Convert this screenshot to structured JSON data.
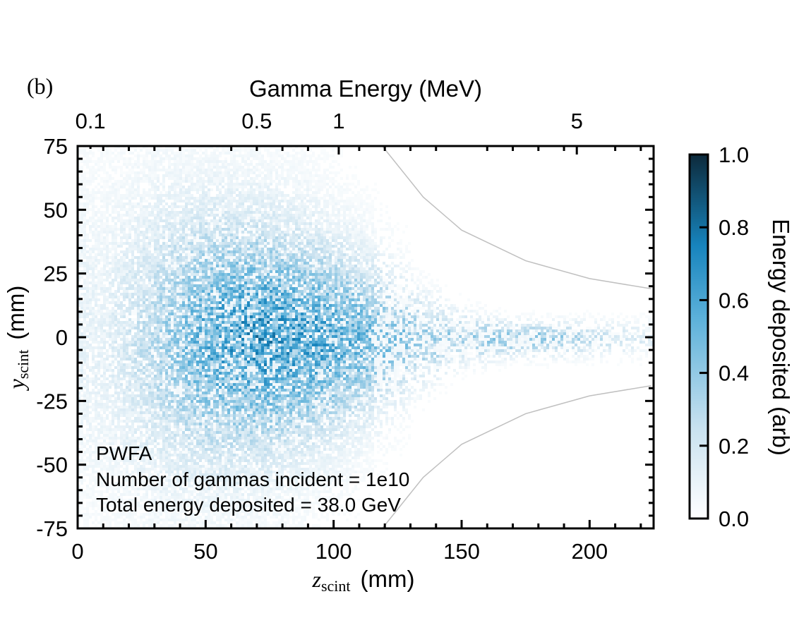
{
  "panel_label": "(b)",
  "chart_data": {
    "type": "heatmap",
    "top_axis": {
      "label": "Gamma Energy (MeV)",
      "ticks": [
        {
          "label": "0.1",
          "z": 5
        },
        {
          "label": "0.5",
          "z": 70
        },
        {
          "label": "1",
          "z": 102
        },
        {
          "label": "5",
          "z": 195
        }
      ]
    },
    "x_axis": {
      "label_symbol": "z",
      "label_subscript": "scint",
      "label_units": "(mm)",
      "range": [
        0,
        225
      ],
      "ticks": [
        0,
        50,
        100,
        150,
        200
      ],
      "tick_labels": [
        "0",
        "50",
        "100",
        "150",
        "200"
      ]
    },
    "y_axis": {
      "label_symbol": "y",
      "label_subscript": "scint",
      "label_units": "(mm)",
      "range": [
        -75,
        75
      ],
      "ticks": [
        75,
        50,
        25,
        0,
        -25,
        -50,
        -75
      ],
      "tick_labels": [
        "75",
        "50",
        "25",
        "0",
        "-25",
        "-50",
        "-75"
      ]
    },
    "colorbar": {
      "label": "Energy deposited (arb)",
      "range": [
        0.0,
        1.0
      ],
      "ticks": [
        1.0,
        0.8,
        0.6,
        0.4,
        0.2,
        0.0
      ],
      "tick_labels": [
        "1.0",
        "0.8",
        "0.6",
        "0.4",
        "0.2",
        "0.0"
      ],
      "color_low": "#ffffff",
      "color_mid": "#2a95c8",
      "color_high": "#0d2a3b"
    },
    "annotation_lines": [
      "PWFA",
      "Number of gammas incident = 1e10",
      "Total energy deposited = 38.0 GeV"
    ],
    "acceptance_boundary": {
      "color": "#c0c0c0",
      "upper_curve": [
        [
          119,
          75
        ],
        [
          135,
          55
        ],
        [
          150,
          42
        ],
        [
          175,
          30
        ],
        [
          200,
          23
        ],
        [
          224,
          19
        ]
      ],
      "lower_curve": [
        [
          119,
          -75
        ],
        [
          135,
          -55
        ],
        [
          150,
          -42
        ],
        [
          175,
          -30
        ],
        [
          200,
          -23
        ],
        [
          224,
          -19
        ]
      ]
    },
    "intensity_profile": {
      "description_z": [
        10,
        30,
        50,
        70,
        90,
        110,
        130,
        150,
        170,
        190,
        210,
        225
      ],
      "relative_peak": [
        0.05,
        0.22,
        0.45,
        0.55,
        0.5,
        0.4,
        0.3,
        0.3,
        0.35,
        0.3,
        0.15,
        0.1
      ],
      "sigma_y_mm": [
        30,
        32,
        30,
        28,
        25,
        20,
        12,
        6,
        4,
        4,
        4,
        4
      ]
    }
  }
}
